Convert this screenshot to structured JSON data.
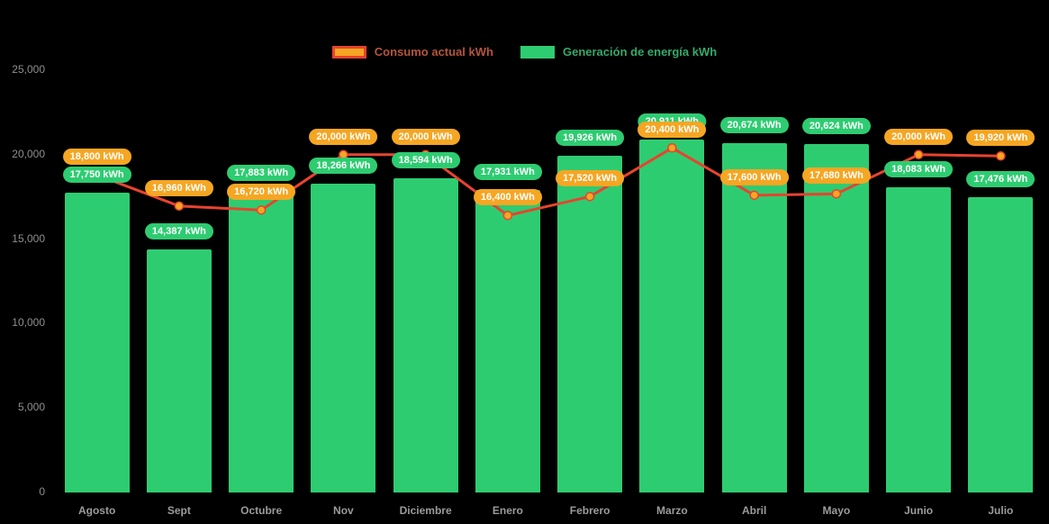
{
  "chart_data": {
    "type": "bar",
    "title": "",
    "xlabel": "",
    "ylabel": "",
    "background": "#000000",
    "grid": false,
    "legend_position": "top",
    "categories": [
      "Agosto",
      "Sept",
      "Octubre",
      "Nov",
      "Diciembre",
      "Enero",
      "Febrero",
      "Marzo",
      "Abril",
      "Mayo",
      "Junio",
      "Julio"
    ],
    "ylim": [
      0,
      25000
    ],
    "y_ticks": [
      0,
      5000,
      10000,
      15000,
      20000,
      25000
    ],
    "y_tick_labels": [
      "0",
      "5,000",
      "10,000",
      "15,000",
      "20,000",
      "25,000"
    ],
    "series": [
      {
        "name": "Consumo actual kWh",
        "type": "line",
        "color": "#e8432e",
        "marker_color": "#f5a623",
        "values": [
          18800,
          16960,
          16720,
          20000,
          20000,
          16400,
          17520,
          20400,
          17600,
          17680,
          20000,
          19920
        ],
        "labels": [
          "18,800 kWh",
          "16,960 kWh",
          "16,720 kWh",
          "20,000 kWh",
          "20,000 kWh",
          "16,400 kWh",
          "17,520 kWh",
          "20,400 kWh",
          "17,600 kWh",
          "17,680 kWh",
          "20,000 kWh",
          "19,920 kWh"
        ]
      },
      {
        "name": "Generación de energía kWh",
        "type": "bar",
        "color": "#2ecc71",
        "values": [
          17750,
          14387,
          17883,
          18266,
          18594,
          17931,
          19926,
          20911,
          20674,
          20624,
          18083,
          17476
        ],
        "labels": [
          "17,750 kWh",
          "14,387 kWh",
          "17,883 kWh",
          "18,266 kWh",
          "18,594 kWh",
          "17,931 kWh",
          "19,926 kWh",
          "20,911 kWh",
          "20,674 kWh",
          "20,624 kWh",
          "18,083 kWh",
          "17,476 kWh"
        ]
      }
    ]
  },
  "legend": {
    "items": [
      {
        "label": "Consumo actual kWh",
        "swatch_fill": "#f5a623",
        "swatch_border": "#e8432e",
        "text_color": "#b5543c"
      },
      {
        "label": "Generación de energía kWh",
        "swatch_fill": "#2ecc71",
        "swatch_border": "#2ecc71",
        "text_color": "#35a96b"
      }
    ]
  }
}
